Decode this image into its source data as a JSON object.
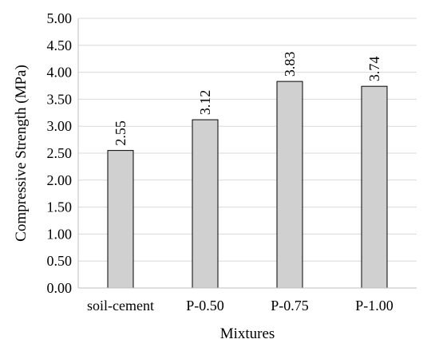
{
  "chart_data": {
    "type": "bar",
    "categories": [
      "soil-cement",
      "P-0.50",
      "P-0.75",
      "P-1.00"
    ],
    "values": [
      2.55,
      3.12,
      3.83,
      3.74
    ],
    "data_labels": [
      "2.55",
      "3.12",
      "3.83",
      "3.74"
    ],
    "xlabel": "Mixtures",
    "ylabel": "Compressive  Strength (MPa)",
    "ylim": [
      0,
      5
    ],
    "yticks": [
      0,
      0.5,
      1,
      1.5,
      2,
      2.5,
      3,
      3.5,
      4,
      4.5,
      5
    ],
    "ytick_labels": [
      "0.00",
      "0.50",
      "1.00",
      "1.50",
      "2.00",
      "2.50",
      "3.00",
      "3.50",
      "4.00",
      "4.50",
      "5.00"
    ],
    "grid": true,
    "bar_color": "#d0d0d0"
  }
}
